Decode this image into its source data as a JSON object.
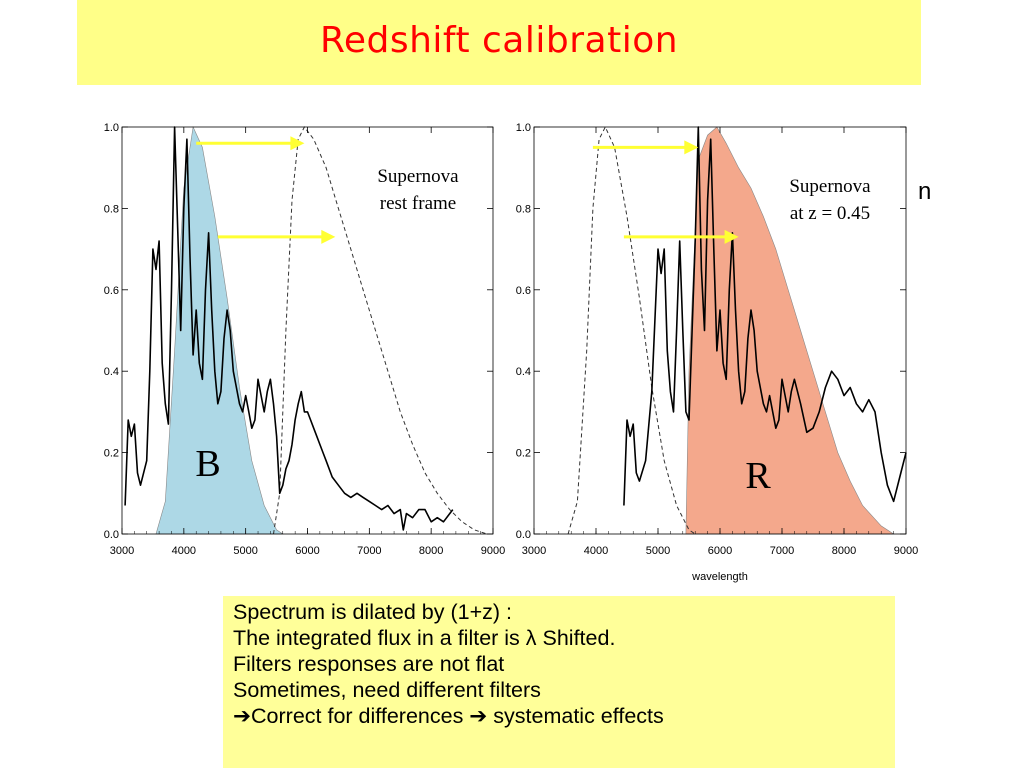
{
  "slide": {
    "title": "Redshift calibration",
    "stray_text": "n",
    "notes": [
      "Spectrum is dilated by (1+z) :",
      "The integrated flux in a filter is  λ Shifted.",
      "Filters responses are not flat",
      "Sometimes, need different filters",
      "➔Correct for differences ➔ systematic effects"
    ]
  },
  "colors": {
    "title_bg": "#ffff88",
    "title_text": "#ff0000",
    "note_bg": "#ffff99",
    "b_filter": "#add8e6",
    "r_filter": "#f4a88c",
    "arrow": "#ffff33"
  },
  "chart_data": [
    {
      "type": "line",
      "annotation": [
        "Supernova",
        "rest frame"
      ],
      "filter_label": "B",
      "filter_color": "#add8e6",
      "xlabel": "",
      "xlim": [
        3000,
        9000
      ],
      "ylim": [
        0,
        1.0
      ],
      "x_ticks": [
        "3000",
        "4000",
        "5000",
        "6000",
        "7000",
        "8000",
        "9000"
      ],
      "y_ticks": [
        "0.0",
        "0.2",
        "0.4",
        "0.6",
        "0.8",
        "1.0"
      ],
      "filter_curve": {
        "x": [
          3550,
          3700,
          3850,
          4000,
          4150,
          4300,
          4500,
          4700,
          4900,
          5100,
          5300,
          5500,
          5600
        ],
        "y": [
          0.0,
          0.08,
          0.45,
          0.85,
          1.0,
          0.95,
          0.78,
          0.58,
          0.36,
          0.18,
          0.07,
          0.01,
          0.0
        ]
      },
      "reference_curve": {
        "x": [
          5450,
          5550,
          5650,
          5750,
          5850,
          5950,
          6100,
          6300,
          6500,
          6700,
          6900,
          7100,
          7300,
          7500,
          7700,
          7900,
          8100,
          8300,
          8500,
          8700,
          8900
        ],
        "y": [
          0.0,
          0.1,
          0.5,
          0.82,
          0.97,
          1.0,
          0.97,
          0.9,
          0.8,
          0.7,
          0.6,
          0.5,
          0.4,
          0.3,
          0.22,
          0.15,
          0.1,
          0.06,
          0.03,
          0.01,
          0.0
        ]
      },
      "spectrum": {
        "x": [
          3050,
          3100,
          3150,
          3200,
          3250,
          3300,
          3400,
          3450,
          3500,
          3550,
          3600,
          3650,
          3700,
          3750,
          3800,
          3850,
          3900,
          3950,
          4000,
          4050,
          4100,
          4150,
          4200,
          4250,
          4300,
          4350,
          4400,
          4450,
          4500,
          4550,
          4600,
          4650,
          4700,
          4750,
          4800,
          4850,
          4900,
          4950,
          5000,
          5050,
          5100,
          5150,
          5200,
          5250,
          5300,
          5350,
          5400,
          5450,
          5500,
          5550,
          5600,
          5650,
          5700,
          5750,
          5800,
          5850,
          5900,
          5950,
          6000,
          6050,
          6100,
          6150,
          6200,
          6250,
          6300,
          6400,
          6500,
          6600,
          6700,
          6800,
          6900,
          7000,
          7100,
          7200,
          7300,
          7400,
          7500,
          7550,
          7600,
          7700,
          7800,
          7900,
          8000,
          8100,
          8200,
          8300,
          8350
        ],
        "y": [
          0.07,
          0.28,
          0.24,
          0.27,
          0.15,
          0.12,
          0.18,
          0.4,
          0.7,
          0.65,
          0.72,
          0.42,
          0.32,
          0.27,
          0.6,
          1.0,
          0.75,
          0.5,
          0.8,
          0.97,
          0.68,
          0.44,
          0.55,
          0.42,
          0.38,
          0.6,
          0.74,
          0.55,
          0.4,
          0.32,
          0.35,
          0.48,
          0.55,
          0.5,
          0.4,
          0.36,
          0.32,
          0.3,
          0.34,
          0.3,
          0.26,
          0.28,
          0.38,
          0.34,
          0.3,
          0.35,
          0.38,
          0.32,
          0.24,
          0.1,
          0.12,
          0.16,
          0.18,
          0.22,
          0.28,
          0.32,
          0.35,
          0.3,
          0.3,
          0.28,
          0.26,
          0.24,
          0.22,
          0.2,
          0.18,
          0.14,
          0.12,
          0.1,
          0.09,
          0.1,
          0.09,
          0.08,
          0.07,
          0.06,
          0.07,
          0.05,
          0.06,
          0.01,
          0.05,
          0.04,
          0.06,
          0.06,
          0.03,
          0.04,
          0.03,
          0.05,
          0.06
        ]
      },
      "arrows": [
        {
          "x_from": 4200,
          "x_to": 5950,
          "y": 0.96
        },
        {
          "x_from": 4550,
          "x_to": 6450,
          "y": 0.73
        }
      ]
    },
    {
      "type": "line",
      "annotation": [
        "Supernova",
        "at z = 0.45"
      ],
      "filter_label": "R",
      "filter_color": "#f4a88c",
      "xlabel": "wavelength",
      "xlim": [
        3000,
        9000
      ],
      "ylim": [
        0,
        1.0
      ],
      "x_ticks": [
        "3000",
        "4000",
        "5000",
        "6000",
        "7000",
        "8000",
        "9000"
      ],
      "y_ticks": [
        "0.0",
        "0.2",
        "0.4",
        "0.6",
        "0.8",
        "1.0"
      ],
      "filter_curve": {
        "x": [
          5450,
          5500,
          5650,
          5800,
          5950,
          6100,
          6300,
          6500,
          6700,
          6900,
          7100,
          7300,
          7500,
          7700,
          7900,
          8100,
          8300,
          8600,
          8800
        ],
        "y": [
          0.0,
          0.4,
          0.92,
          0.98,
          1.0,
          0.96,
          0.9,
          0.85,
          0.78,
          0.7,
          0.6,
          0.5,
          0.4,
          0.3,
          0.2,
          0.13,
          0.07,
          0.02,
          0.0
        ]
      },
      "reference_curve": {
        "x": [
          3550,
          3700,
          3850,
          3950,
          4050,
          4150,
          4300,
          4500,
          4700,
          4900,
          5100,
          5300,
          5500,
          5600
        ],
        "y": [
          0.0,
          0.08,
          0.45,
          0.8,
          0.97,
          1.0,
          0.95,
          0.78,
          0.58,
          0.36,
          0.18,
          0.07,
          0.01,
          0.0
        ]
      },
      "spectrum": {
        "x": [
          4450,
          4500,
          4550,
          4600,
          4650,
          4700,
          4800,
          4900,
          5000,
          5050,
          5100,
          5150,
          5200,
          5250,
          5300,
          5350,
          5400,
          5450,
          5500,
          5550,
          5600,
          5650,
          5700,
          5750,
          5800,
          5850,
          5900,
          5950,
          6000,
          6050,
          6100,
          6150,
          6200,
          6250,
          6300,
          6350,
          6400,
          6450,
          6500,
          6550,
          6600,
          6650,
          6700,
          6750,
          6800,
          6850,
          6900,
          6950,
          7000,
          7050,
          7100,
          7150,
          7200,
          7300,
          7400,
          7500,
          7600,
          7700,
          7800,
          7900,
          8000,
          8100,
          8200,
          8300,
          8400,
          8500,
          8600,
          8700,
          8800,
          8900,
          9000
        ],
        "y": [
          0.07,
          0.28,
          0.24,
          0.27,
          0.15,
          0.13,
          0.18,
          0.35,
          0.7,
          0.64,
          0.7,
          0.45,
          0.35,
          0.3,
          0.5,
          0.72,
          0.5,
          0.3,
          0.28,
          0.5,
          0.72,
          1.0,
          0.65,
          0.5,
          0.82,
          0.97,
          0.7,
          0.45,
          0.55,
          0.42,
          0.38,
          0.6,
          0.74,
          0.55,
          0.4,
          0.32,
          0.35,
          0.48,
          0.55,
          0.5,
          0.4,
          0.36,
          0.32,
          0.3,
          0.34,
          0.3,
          0.26,
          0.28,
          0.38,
          0.34,
          0.3,
          0.35,
          0.38,
          0.32,
          0.25,
          0.26,
          0.3,
          0.36,
          0.4,
          0.38,
          0.34,
          0.36,
          0.32,
          0.3,
          0.33,
          0.3,
          0.2,
          0.12,
          0.08,
          0.14,
          0.2
        ]
      },
      "arrows": [
        {
          "x_from": 3950,
          "x_to": 5650,
          "y": 0.95
        },
        {
          "x_from": 4450,
          "x_to": 6300,
          "y": 0.73
        }
      ]
    }
  ]
}
